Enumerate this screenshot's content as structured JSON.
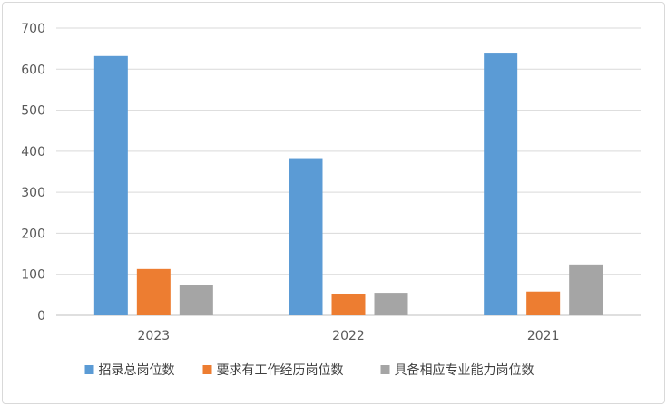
{
  "chart_data": {
    "type": "bar",
    "categories": [
      "2023",
      "2022",
      "2021"
    ],
    "series": [
      {
        "name": "招录总岗位数",
        "values": [
          632,
          383,
          638
        ],
        "color": "#5B9BD5"
      },
      {
        "name": "要求有工作经历岗位数",
        "values": [
          113,
          53,
          58
        ],
        "color": "#ED7D31"
      },
      {
        "name": "具备相应专业能力岗位数",
        "values": [
          73,
          55,
          124
        ],
        "color": "#A5A5A5"
      }
    ],
    "ylim": [
      0,
      700
    ],
    "yticks": [
      0,
      100,
      200,
      300,
      400,
      500,
      600,
      700
    ],
    "grid": true,
    "legend_position": "bottom"
  }
}
